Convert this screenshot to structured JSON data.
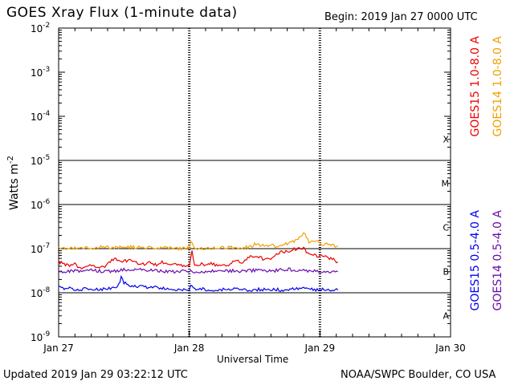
{
  "header": {
    "title": "GOES Xray Flux (1-minute data)",
    "begin": "Begin:  2019 Jan 27 0000 UTC"
  },
  "footer": {
    "updated": "Updated 2019 Jan 29 03:22:12 UTC",
    "credit": "NOAA/SWPC Boulder, CO USA"
  },
  "chart_data": {
    "type": "line",
    "title": "GOES Xray Flux (1-minute data)",
    "xlabel": "Universal Time",
    "ylabel": "Watts m",
    "ylabel_exponent": "-2",
    "yscale": "log",
    "ylim": [
      1e-09,
      0.01
    ],
    "xlim": [
      0,
      72
    ],
    "x_units": "hours since 2019 Jan 27 0000 UTC",
    "x_ticks": [
      {
        "x": 0,
        "label": "Jan 27"
      },
      {
        "x": 24,
        "label": "Jan 28"
      },
      {
        "x": 48,
        "label": "Jan 29"
      },
      {
        "x": 72,
        "label": "Jan 30"
      }
    ],
    "y_ticks": [
      {
        "exp": -2,
        "base": "10",
        "sup": "-2"
      },
      {
        "exp": -3,
        "base": "10",
        "sup": "-3"
      },
      {
        "exp": -4,
        "base": "10",
        "sup": "-4"
      },
      {
        "exp": -5,
        "base": "10",
        "sup": "-5"
      },
      {
        "exp": -6,
        "base": "10",
        "sup": "-6"
      },
      {
        "exp": -7,
        "base": "10",
        "sup": "-7"
      },
      {
        "exp": -8,
        "base": "10",
        "sup": "-8"
      },
      {
        "exp": -9,
        "base": "10",
        "sup": "-9"
      }
    ],
    "flare_classes": [
      {
        "label": "X",
        "exp": -4
      },
      {
        "label": "M",
        "exp": -5
      },
      {
        "label": "C",
        "exp": -6
      },
      {
        "label": "B",
        "exp": -7
      },
      {
        "label": "A",
        "exp": -8
      }
    ],
    "grid": true,
    "series": [
      {
        "name": "GOES15 1.0-8.0 A",
        "color": "#ee0000",
        "x": [
          0,
          1,
          2,
          3,
          4,
          5,
          6,
          7,
          8,
          9,
          10,
          11,
          12,
          13,
          14,
          15,
          16,
          17,
          18,
          19,
          20,
          21,
          22,
          23,
          24,
          24.5,
          25,
          26,
          27,
          28,
          29,
          30,
          31,
          32,
          33,
          34,
          35,
          36,
          37,
          38,
          39,
          40,
          41,
          42,
          43,
          44,
          45,
          46,
          47,
          48,
          49,
          50,
          51.3
        ],
        "y": [
          5e-08,
          4.5e-08,
          4e-08,
          4.5e-08,
          3.5e-08,
          4e-08,
          4.2e-08,
          4e-08,
          3.7e-08,
          4.5e-08,
          5.8e-08,
          5.5e-08,
          5.2e-08,
          5.6e-08,
          5e-08,
          4.4e-08,
          4.6e-08,
          4.8e-08,
          4.3e-08,
          5e-08,
          4.7e-08,
          4.5e-08,
          4.3e-08,
          4.2e-08,
          4e-08,
          9e-08,
          4.2e-08,
          4.5e-08,
          4.4e-08,
          4.8e-08,
          4.2e-08,
          4.1e-08,
          4e-08,
          5e-08,
          5.1e-08,
          4.8e-08,
          6.5e-08,
          6.8e-08,
          6.2e-08,
          5.5e-08,
          6e-08,
          8e-08,
          8.3e-08,
          8.5e-08,
          9.6e-08,
          1e-07,
          1e-07,
          7.5e-08,
          7e-08,
          6.8e-08,
          6.5e-08,
          6e-08,
          5e-08
        ]
      },
      {
        "name": "GOES14 1.0-8.0 A",
        "color": "#f0a000",
        "x": [
          0,
          2,
          4,
          6,
          8,
          10,
          12,
          14,
          16,
          18,
          20,
          22,
          24,
          24.3,
          25,
          27,
          29,
          31,
          33,
          35,
          36,
          38,
          40,
          42,
          44,
          45,
          46,
          47,
          48,
          49,
          50,
          51.3
        ],
        "y": [
          1.05e-07,
          1e-07,
          1.08e-07,
          1.02e-07,
          1.1e-07,
          1.05e-07,
          1.12e-07,
          1.08e-07,
          1.05e-07,
          1.02e-07,
          1.05e-07,
          1e-07,
          1.03e-07,
          1.5e-07,
          1e-07,
          1.02e-07,
          1.05e-07,
          1.06e-07,
          1.05e-07,
          1.08e-07,
          1.25e-07,
          1.18e-07,
          1.15e-07,
          1.3e-07,
          1.6e-07,
          2.3e-07,
          1.45e-07,
          1.5e-07,
          1.3e-07,
          1.25e-07,
          1.2e-07,
          1.15e-07
        ]
      },
      {
        "name": "GOES15 0.5-4.0 A",
        "color": "#0000ee",
        "x": [
          0,
          2,
          4,
          6,
          8,
          10,
          11,
          11.5,
          12,
          13,
          14,
          16,
          18,
          20,
          22,
          24,
          24.3,
          25,
          27,
          29,
          31,
          33,
          35,
          37,
          39,
          41,
          43,
          45,
          47,
          49,
          51.3
        ],
        "y": [
          1.3e-08,
          1.25e-08,
          1.2e-08,
          1.25e-08,
          1.2e-08,
          1.3e-08,
          1.5e-08,
          2.2e-08,
          1.7e-08,
          1.5e-08,
          1.4e-08,
          1.35e-08,
          1.3e-08,
          1.25e-08,
          1.2e-08,
          1.2e-08,
          1.5e-08,
          1.2e-08,
          1.2e-08,
          1.15e-08,
          1.2e-08,
          1.2e-08,
          1.15e-08,
          1.2e-08,
          1.2e-08,
          1.15e-08,
          1.2e-08,
          1.25e-08,
          1.15e-08,
          1.2e-08,
          1.15e-08
        ]
      },
      {
        "name": "GOES14 0.5-4.0 A",
        "color": "#6a0dad",
        "x": [
          0,
          3,
          6,
          9,
          12,
          15,
          18,
          21,
          24,
          27,
          30,
          33,
          36,
          39,
          42,
          45,
          48,
          51.3
        ],
        "y": [
          3e-08,
          3.1e-08,
          3.2e-08,
          3e-08,
          3.3e-08,
          3.4e-08,
          3.1e-08,
          3e-08,
          3.1e-08,
          3e-08,
          3.2e-08,
          3.1e-08,
          3.2e-08,
          3.1e-08,
          3.4e-08,
          3.2e-08,
          3e-08,
          3e-08
        ]
      }
    ]
  }
}
